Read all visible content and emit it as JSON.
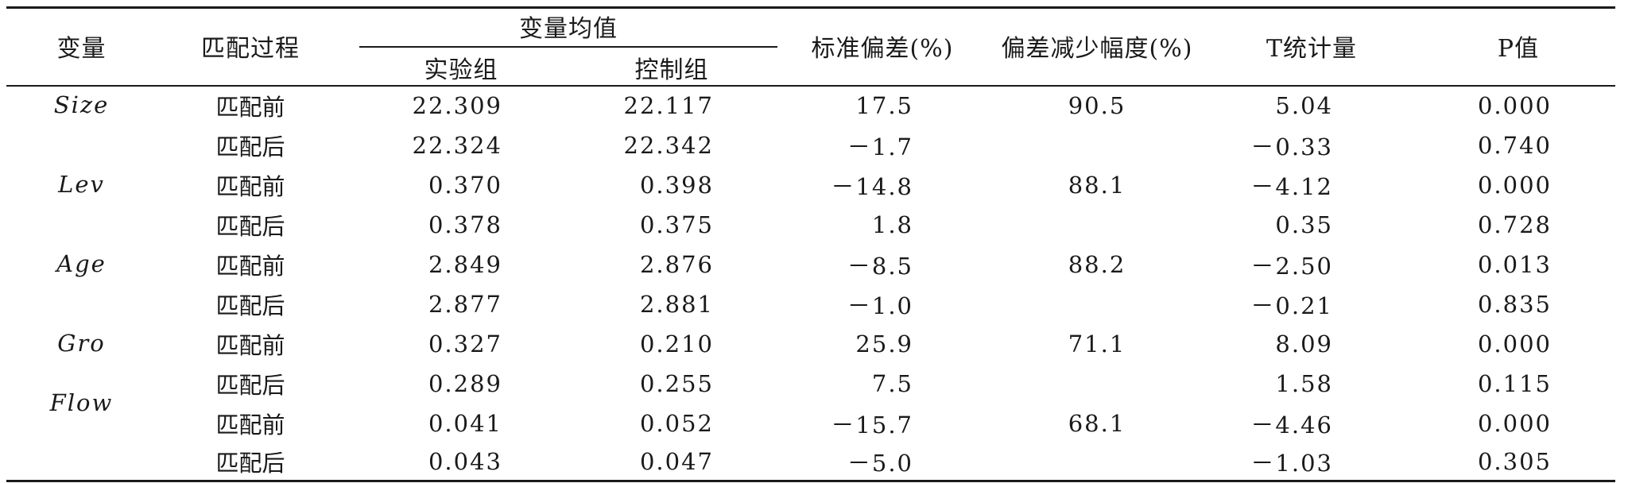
{
  "table": {
    "headers": {
      "variable": "变量",
      "process": "匹配过程",
      "mean_group": "变量均值",
      "treatment": "实验组",
      "control": "控制组",
      "std_bias": "标准偏差(%)",
      "bias_reduction": "偏差减少幅度(%)",
      "t_stat": "T统计量",
      "p_value": "P值"
    },
    "variables": [
      "Size",
      "Lev",
      "Age",
      "Gro",
      "Flow"
    ],
    "rows": [
      {
        "process": "匹配前",
        "treatment": "22.309",
        "control": "22.117",
        "std_bias": "17.5",
        "bias_reduction": "90.5",
        "t": "5.04",
        "p": "0.000"
      },
      {
        "process": "匹配后",
        "treatment": "22.324",
        "control": "22.342",
        "std_bias": "－1.7",
        "bias_reduction": "",
        "t": "－0.33",
        "p": "0.740"
      },
      {
        "process": "匹配前",
        "treatment": "0.370",
        "control": "0.398",
        "std_bias": "－14.8",
        "bias_reduction": "88.1",
        "t": "－4.12",
        "p": "0.000"
      },
      {
        "process": "匹配后",
        "treatment": "0.378",
        "control": "0.375",
        "std_bias": "1.8",
        "bias_reduction": "",
        "t": "0.35",
        "p": "0.728"
      },
      {
        "process": "匹配前",
        "treatment": "2.849",
        "control": "2.876",
        "std_bias": "－8.5",
        "bias_reduction": "88.2",
        "t": "－2.50",
        "p": "0.013"
      },
      {
        "process": "匹配后",
        "treatment": "2.877",
        "control": "2.881",
        "std_bias": "－1.0",
        "bias_reduction": "",
        "t": "－0.21",
        "p": "0.835"
      },
      {
        "process": "匹配前",
        "treatment": "0.327",
        "control": "0.210",
        "std_bias": "25.9",
        "bias_reduction": "71.1",
        "t": "8.09",
        "p": "0.000"
      },
      {
        "process": "匹配后",
        "treatment": "0.289",
        "control": "0.255",
        "std_bias": "7.5",
        "bias_reduction": "",
        "t": "1.58",
        "p": "0.115"
      },
      {
        "process": "匹配前",
        "treatment": "0.041",
        "control": "0.052",
        "std_bias": "－15.7",
        "bias_reduction": "68.1",
        "t": "－4.46",
        "p": "0.000"
      },
      {
        "process": "匹配后",
        "treatment": "0.043",
        "control": "0.047",
        "std_bias": "－5.0",
        "bias_reduction": "",
        "t": "－1.03",
        "p": "0.305"
      }
    ]
  }
}
